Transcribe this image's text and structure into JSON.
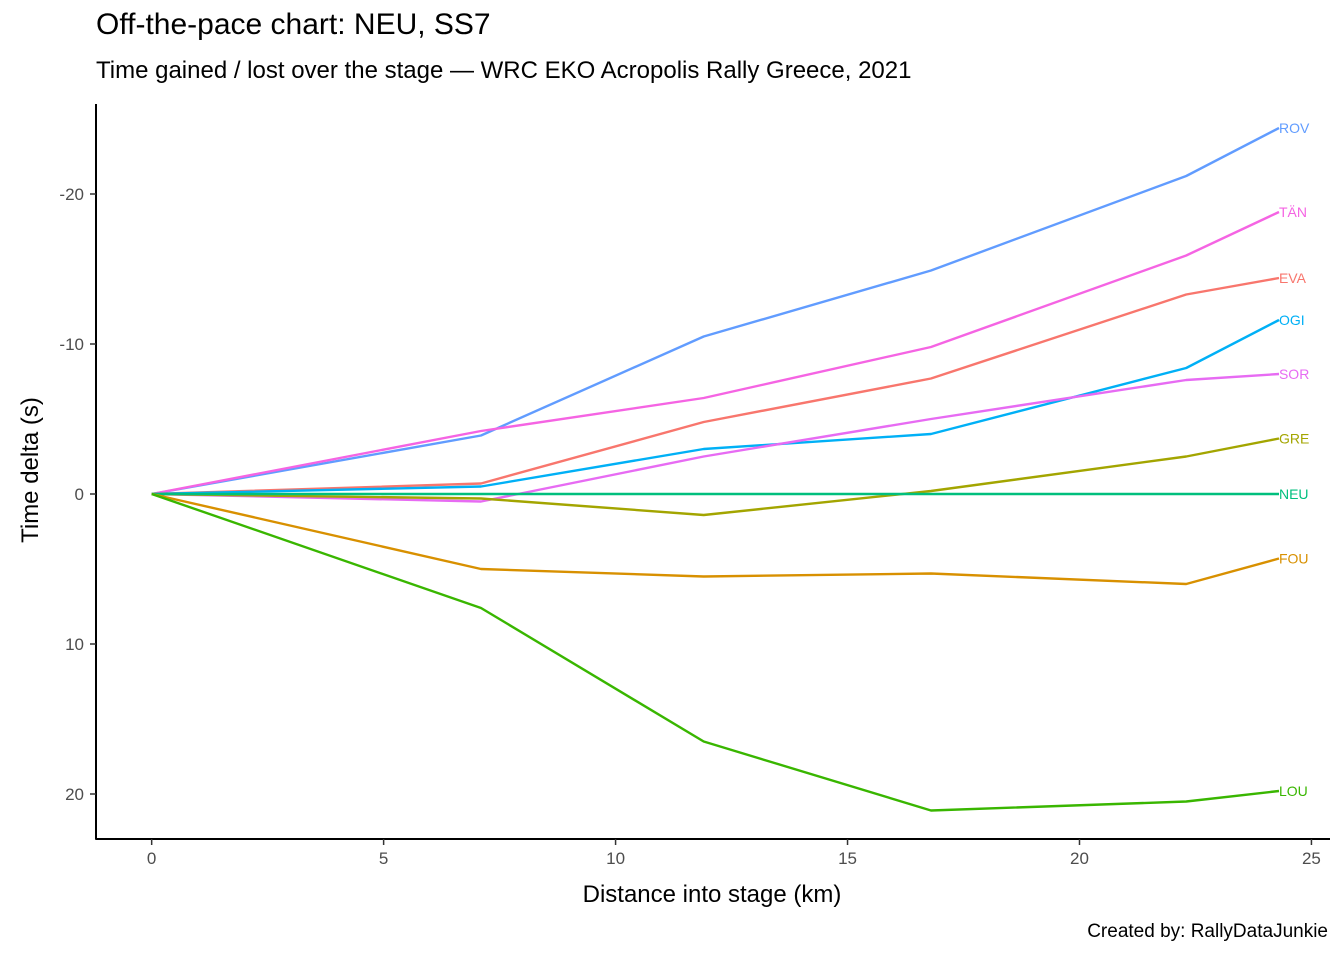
{
  "title": "Off-the-pace chart: NEU, SS7",
  "subtitle": "Time gained / lost over the stage — WRC EKO Acropolis Rally Greece, 2021",
  "caption": "Created by: RallyDataJunkie",
  "chart_data": {
    "type": "line",
    "xlabel": "Distance into stage (km)",
    "ylabel": "Time delta (s)",
    "xlim": [
      -1.2,
      25.4
    ],
    "ylim": [
      23,
      -26
    ],
    "y_reversed": true,
    "x_ticks": [
      0,
      5,
      10,
      15,
      20,
      25
    ],
    "y_ticks": [
      -20,
      -10,
      0,
      10,
      20
    ],
    "y_tick_labels": [
      "-20",
      "-10",
      "0",
      "10",
      "20"
    ],
    "grid": false,
    "legend": "none (direct line-end labels)",
    "x": [
      0,
      7.1,
      11.9,
      16.8,
      22.3,
      24.3
    ],
    "series": [
      {
        "name": "ROV",
        "color": "#619CFF",
        "values": [
          0,
          -3.9,
          -10.5,
          -14.9,
          -21.2,
          -24.4
        ]
      },
      {
        "name": "TÄN",
        "color": "#F564E3",
        "values": [
          0,
          -4.2,
          -6.4,
          -9.8,
          -15.9,
          -18.8
        ]
      },
      {
        "name": "EVA",
        "color": "#F8766D",
        "values": [
          0,
          -0.7,
          -4.8,
          -7.7,
          -13.3,
          -14.4
        ]
      },
      {
        "name": "OGI",
        "color": "#00B0F6",
        "values": [
          0,
          -0.5,
          -3.0,
          -4.0,
          -8.4,
          -11.6
        ]
      },
      {
        "name": "SOR",
        "color": "#E76BF3",
        "values": [
          0,
          0.5,
          -2.5,
          -5.0,
          -7.6,
          -8.0
        ]
      },
      {
        "name": "GRE",
        "color": "#A3A500",
        "values": [
          0,
          0.3,
          1.4,
          -0.2,
          -2.5,
          -3.7
        ]
      },
      {
        "name": "NEU",
        "color": "#00BF7D",
        "values": [
          0,
          0,
          0,
          0,
          0,
          0
        ]
      },
      {
        "name": "FOU",
        "color": "#D89000",
        "values": [
          0,
          5.0,
          5.5,
          5.3,
          6.0,
          4.3
        ]
      },
      {
        "name": "LOU",
        "color": "#39B600",
        "values": [
          0,
          7.6,
          16.5,
          21.1,
          20.5,
          19.8
        ]
      }
    ]
  }
}
